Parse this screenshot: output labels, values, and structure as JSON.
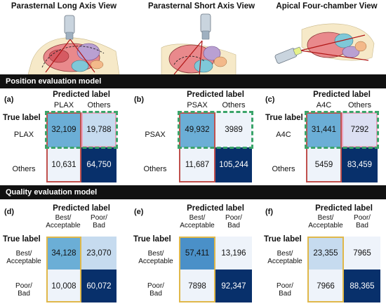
{
  "views": [
    {
      "title": "Parasternal Long Axis View"
    },
    {
      "title": "Parasternal Short Axis View"
    },
    {
      "title": "Apical Four-chamber View"
    }
  ],
  "sections": {
    "position": "Position evaluation model",
    "quality": "Quality evaluation model"
  },
  "predicted_label": "Predicted label",
  "true_label": "True label",
  "position_panels": [
    {
      "letter": "(a)",
      "cols": [
        "PLAX",
        "Others"
      ],
      "rows": [
        "PLAX",
        "Others"
      ],
      "values": [
        [
          "32,109",
          "19,788"
        ],
        [
          "10,631",
          "64,750"
        ]
      ]
    },
    {
      "letter": "(b)",
      "cols": [
        "PSAX",
        "Others"
      ],
      "rows": [
        "PSAX",
        "Others"
      ],
      "values": [
        [
          "49,932",
          "3989"
        ],
        [
          "11,687",
          "105,244"
        ]
      ]
    },
    {
      "letter": "(c)",
      "cols": [
        "A4C",
        "Others"
      ],
      "rows": [
        "A4C",
        "Others"
      ],
      "values": [
        [
          "31,441",
          "7292"
        ],
        [
          "5459",
          "83,459"
        ]
      ]
    }
  ],
  "quality_panels": [
    {
      "letter": "(d)",
      "cols": [
        [
          "Best/",
          "Acceptable"
        ],
        [
          "Poor/",
          "Bad"
        ]
      ],
      "rows": [
        [
          "Best/",
          "Acceptable"
        ],
        [
          "Poor/",
          "Bad"
        ]
      ],
      "values": [
        [
          "34,128",
          "23,070"
        ],
        [
          "10,008",
          "60,072"
        ]
      ]
    },
    {
      "letter": "(e)",
      "cols": [
        [
          "Best/",
          "Acceptable"
        ],
        [
          "Poor/",
          "Bad"
        ]
      ],
      "rows": [
        [
          "Best/",
          "Acceptable"
        ],
        [
          "Poor/",
          "Bad"
        ]
      ],
      "values": [
        [
          "57,411",
          "13,196"
        ],
        [
          "7898",
          "92,347"
        ]
      ]
    },
    {
      "letter": "(f)",
      "cols": [
        [
          "Best/",
          "Acceptable"
        ],
        [
          "Poor/",
          "Bad"
        ]
      ],
      "rows": [
        [
          "Best/",
          "Acceptable"
        ],
        [
          "Poor/",
          "Bad"
        ]
      ],
      "values": [
        [
          "23,355",
          "7965"
        ],
        [
          "7966",
          "88,365"
        ]
      ]
    }
  ],
  "colors": {
    "mid": "#6baed6",
    "light": "#c6dbef",
    "pale": "#eef3fa",
    "dark": "#08306b",
    "red_outline": "#c0504d",
    "pink_outline": "#e9a3bf",
    "green_dashed": "#3aa46a",
    "gold_outline": "#e0b84a"
  }
}
